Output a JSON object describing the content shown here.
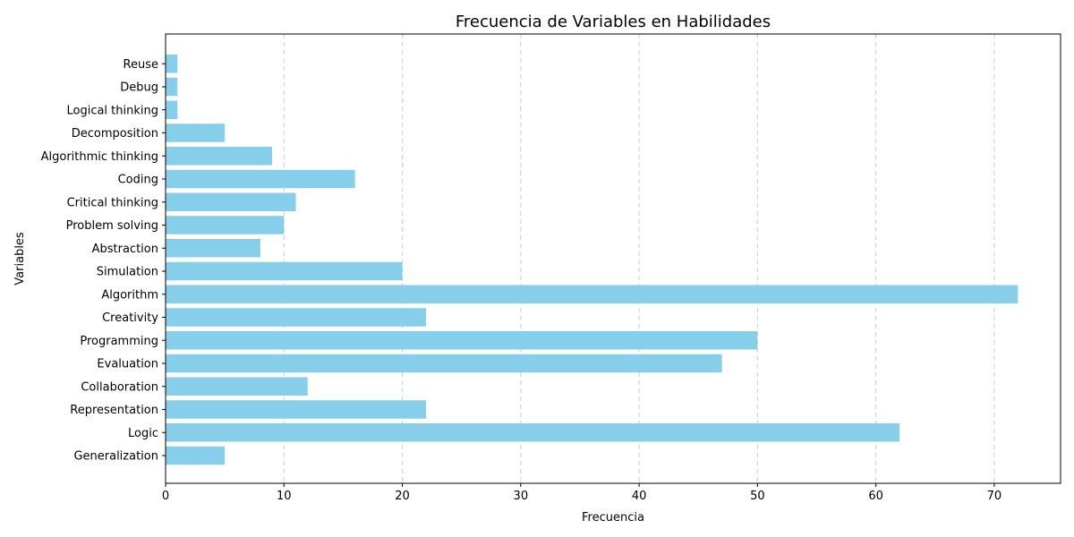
{
  "chart_data": {
    "type": "bar",
    "orientation": "horizontal",
    "title": "Frecuencia de Variables en Habilidades",
    "xlabel": "Frecuencia",
    "ylabel": "Variables",
    "categories": [
      "Generalization",
      "Logic",
      "Representation",
      "Collaboration",
      "Evaluation",
      "Programming",
      "Creativity",
      "Algorithm",
      "Simulation",
      "Abstraction",
      "Problem solving",
      "Critical thinking",
      "Coding",
      "Algorithmic thinking",
      "Decomposition",
      "Logical thinking",
      "Debug",
      "Reuse"
    ],
    "values": [
      5,
      62,
      22,
      12,
      47,
      50,
      22,
      72,
      20,
      8,
      10,
      11,
      16,
      9,
      5,
      1,
      1,
      1
    ],
    "xlim": [
      0,
      75.6
    ],
    "xticks": [
      0,
      10,
      20,
      30,
      40,
      50,
      60,
      70
    ],
    "grid": "x-dashed",
    "bar_color": "#87ceeb"
  }
}
